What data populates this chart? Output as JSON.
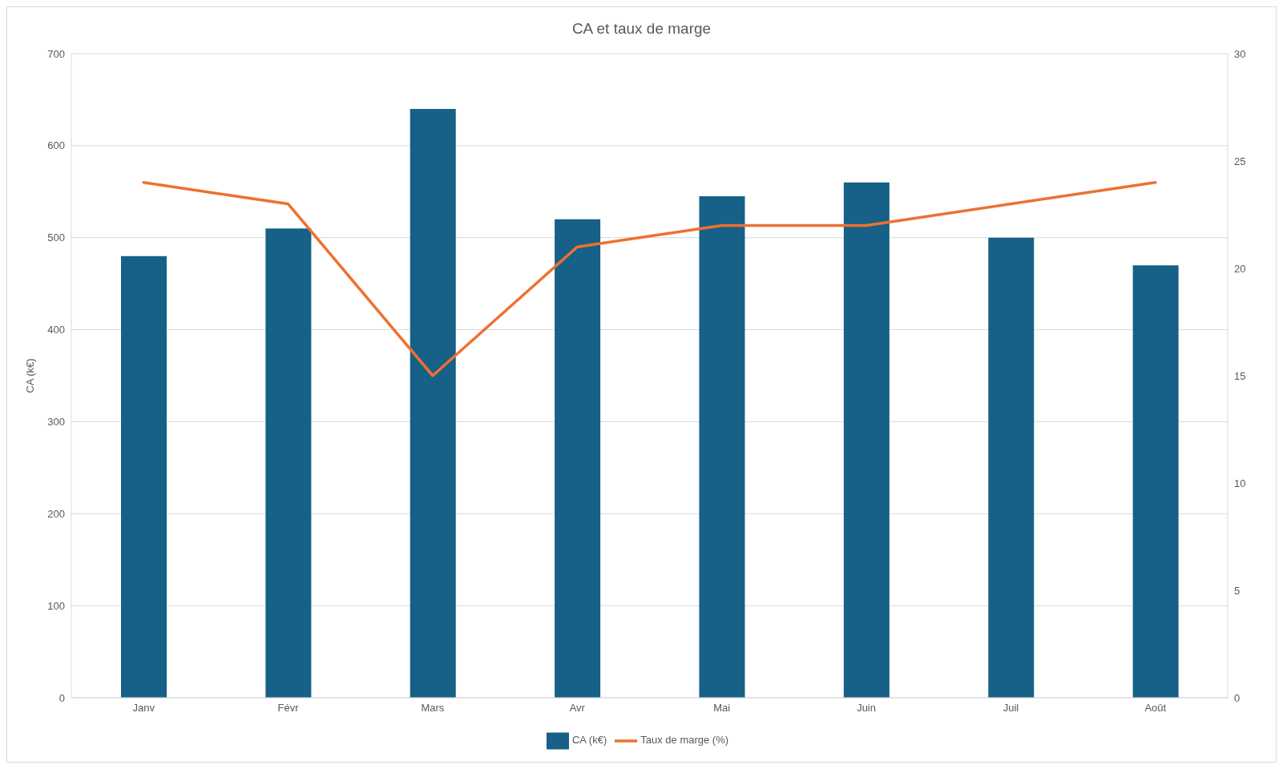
{
  "chart_data": {
    "type": "bar",
    "title": "CA et taux de marge",
    "ylabel": "CA (k€)",
    "categories": [
      "Janv",
      "Févr",
      "Mars",
      "Avr",
      "Mai",
      "Juin",
      "Juil",
      "Août"
    ],
    "series": [
      {
        "name": "CA (k€)",
        "color": "#176087",
        "values": [
          480,
          510,
          640,
          520,
          545,
          560,
          500,
          470
        ]
      },
      {
        "name": "Taux de marge (%)",
        "type": "line",
        "axis": "y2",
        "color": "#ed7131",
        "values": [
          24,
          23,
          15,
          21,
          22,
          22,
          23,
          24
        ]
      }
    ],
    "ylim": [
      0,
      700
    ],
    "yticks": [
      0,
      100,
      200,
      300,
      400,
      500,
      600,
      700
    ],
    "y2lim": [
      0,
      30
    ],
    "y2ticks": [
      0,
      5,
      10,
      15,
      20,
      25,
      30
    ],
    "grid": "y",
    "legend": "bottom",
    "marker": "none",
    "line_style": "solid"
  }
}
